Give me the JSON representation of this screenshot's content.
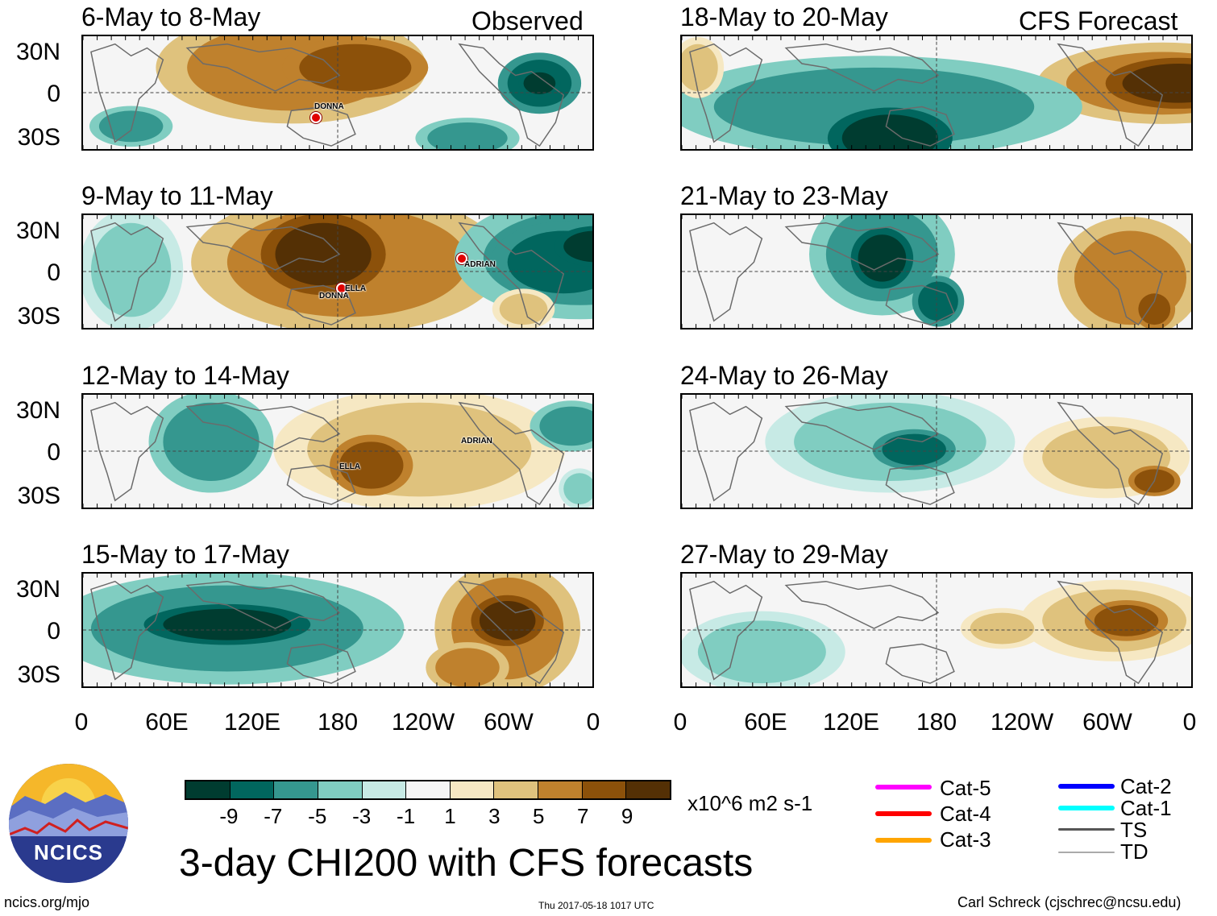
{
  "header": {
    "observed_label": "Observed",
    "forecast_label": "CFS Forecast"
  },
  "panels": {
    "left": [
      {
        "title": "6-May to 8-May"
      },
      {
        "title": "9-May to 11-May"
      },
      {
        "title": "12-May to 14-May"
      },
      {
        "title": "15-May to 17-May"
      }
    ],
    "right": [
      {
        "title": "18-May to 20-May"
      },
      {
        "title": "21-May to 23-May"
      },
      {
        "title": "24-May to 26-May"
      },
      {
        "title": "27-May to 29-May"
      }
    ]
  },
  "axes": {
    "lat_labels": [
      "30N",
      "0",
      "30S"
    ],
    "lon_labels": [
      "0",
      "60E",
      "120E",
      "180",
      "120W",
      "60W",
      "0"
    ]
  },
  "storms": {
    "p1": [
      {
        "name": "DONNA"
      }
    ],
    "p2": [
      {
        "name": "ELLA"
      },
      {
        "name": "DONNA"
      },
      {
        "name": "ADRIAN"
      }
    ],
    "p3": [
      {
        "name": "ADRIAN"
      },
      {
        "name": "ELLA"
      }
    ]
  },
  "colorbar": {
    "colors": [
      "#003c30",
      "#01665e",
      "#35978f",
      "#80cdc1",
      "#c7eae5",
      "#f5f5f5",
      "#f6e8c3",
      "#dfc27d",
      "#bf812d",
      "#8c510a",
      "#543005"
    ],
    "ticks": [
      "-9",
      "-7",
      "-5",
      "-3",
      "-1",
      "1",
      "3",
      "5",
      "7",
      "9"
    ],
    "units": "x10^6 m2 s-1"
  },
  "legend": [
    {
      "label": "Cat-5",
      "color": "#ff00ff"
    },
    {
      "label": "Cat-4",
      "color": "#ff0000"
    },
    {
      "label": "Cat-3",
      "color": "#ffa500"
    },
    {
      "label": "Cat-2",
      "color": "#0000ff"
    },
    {
      "label": "Cat-1",
      "color": "#00ffff"
    },
    {
      "label": "TS",
      "color": "#555555"
    },
    {
      "label": "TD",
      "color": "#aaaaaa"
    }
  ],
  "title": "3-day CHI200 with CFS forecasts",
  "logo": {
    "text": "NCICS"
  },
  "footer": {
    "left": "ncics.org/mjo",
    "center": "Thu 2017-05-18 1017 UTC",
    "right": "Carl Schreck (cjschrec@ncsu.edu)"
  }
}
